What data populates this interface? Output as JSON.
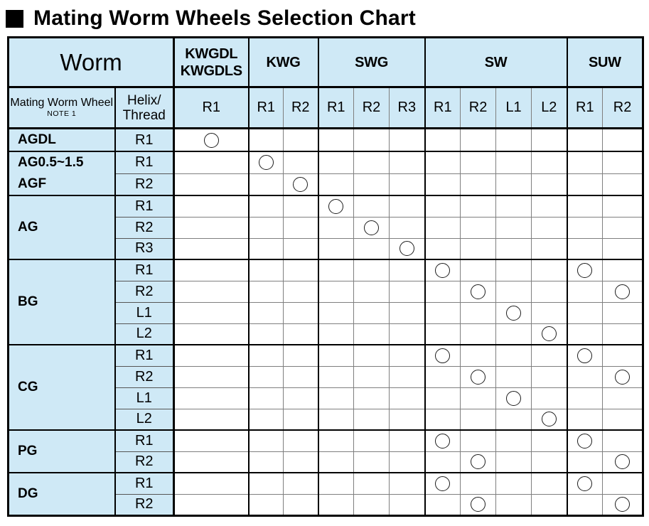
{
  "page": {
    "title": "Mating Worm Wheels Selection Chart"
  },
  "colors": {
    "header_fill": "#cfe9f6",
    "grid_line": "#7f7f7f",
    "heavy_border": "#000000",
    "circle_stroke": "#1d1d1d"
  },
  "chart_data": {
    "type": "table",
    "title": "Mating Worm Wheels Selection Chart",
    "worm_header": "Worm",
    "row_header_1": "Mating Worm Wheel",
    "row_header_note": "NOTE 1",
    "row_header_2": "Helix/\nThread",
    "mark_symbol": "circle",
    "column_groups": [
      {
        "label": "KWGDL\nKWGDLS",
        "columns": [
          "R1"
        ]
      },
      {
        "label": "KWG",
        "columns": [
          "R1",
          "R2"
        ]
      },
      {
        "label": "SWG",
        "columns": [
          "R1",
          "R2",
          "R3"
        ]
      },
      {
        "label": "SW",
        "columns": [
          "R1",
          "R2",
          "L1",
          "L2"
        ]
      },
      {
        "label": "SUW",
        "columns": [
          "R1",
          "R2"
        ]
      }
    ],
    "columns_flat": [
      "KWGDL-R1",
      "KWG-R1",
      "KWG-R2",
      "SWG-R1",
      "SWG-R2",
      "SWG-R3",
      "SW-R1",
      "SW-R2",
      "SW-L1",
      "SW-L2",
      "SUW-R1",
      "SUW-R2"
    ],
    "row_groups": [
      {
        "label": "AGDL",
        "rows": [
          {
            "helix": "R1",
            "marks": [
              "KWGDL-R1"
            ]
          }
        ]
      },
      {
        "label": "AG0.5~1.5\nAGF",
        "rows": [
          {
            "helix": "R1",
            "marks": [
              "KWG-R1"
            ]
          },
          {
            "helix": "R2",
            "marks": [
              "KWG-R2"
            ]
          }
        ]
      },
      {
        "label": "AG",
        "rows": [
          {
            "helix": "R1",
            "marks": [
              "SWG-R1"
            ]
          },
          {
            "helix": "R2",
            "marks": [
              "SWG-R2"
            ]
          },
          {
            "helix": "R3",
            "marks": [
              "SWG-R3"
            ]
          }
        ]
      },
      {
        "label": "BG",
        "rows": [
          {
            "helix": "R1",
            "marks": [
              "SW-R1",
              "SUW-R1"
            ]
          },
          {
            "helix": "R2",
            "marks": [
              "SW-R2",
              "SUW-R2"
            ]
          },
          {
            "helix": "L1",
            "marks": [
              "SW-L1"
            ]
          },
          {
            "helix": "L2",
            "marks": [
              "SW-L2"
            ]
          }
        ]
      },
      {
        "label": "CG",
        "rows": [
          {
            "helix": "R1",
            "marks": [
              "SW-R1",
              "SUW-R1"
            ]
          },
          {
            "helix": "R2",
            "marks": [
              "SW-R2",
              "SUW-R2"
            ]
          },
          {
            "helix": "L1",
            "marks": [
              "SW-L1"
            ]
          },
          {
            "helix": "L2",
            "marks": [
              "SW-L2"
            ]
          }
        ]
      },
      {
        "label": "PG",
        "rows": [
          {
            "helix": "R1",
            "marks": [
              "SW-R1",
              "SUW-R1"
            ]
          },
          {
            "helix": "R2",
            "marks": [
              "SW-R2",
              "SUW-R2"
            ]
          }
        ]
      },
      {
        "label": "DG",
        "rows": [
          {
            "helix": "R1",
            "marks": [
              "SW-R1",
              "SUW-R1"
            ]
          },
          {
            "helix": "R2",
            "marks": [
              "SW-R2",
              "SUW-R2"
            ]
          }
        ]
      }
    ]
  }
}
